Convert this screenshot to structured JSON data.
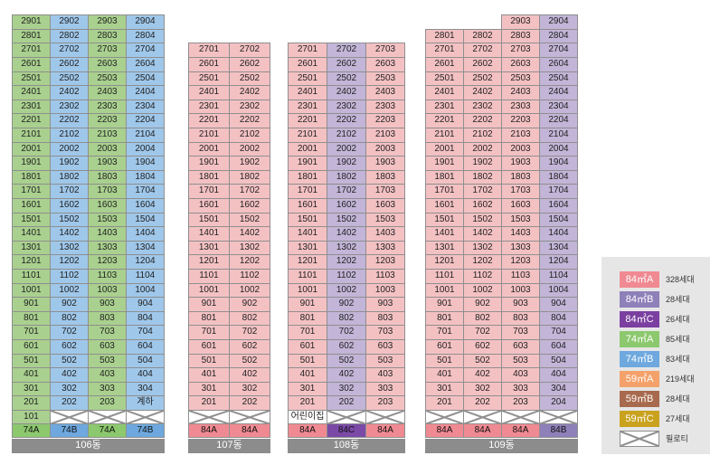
{
  "colors": {
    "84A": "#f4c1c3",
    "84B": "#c2b5d7",
    "84C": "#c2b5d7",
    "74A": "#a9d08e",
    "74B": "#9fc7ea",
    "59A": "#f4c1c3"
  },
  "buildings": [
    {
      "id": "106",
      "label": "106동",
      "columns": [
        {
          "type": "74A",
          "tag": "74A",
          "top_floor": 29,
          "suffix": "01",
          "low": [
            {
              "floor": 1,
              "text": "101"
            }
          ]
        },
        {
          "type": "74B",
          "tag": "74B",
          "top_floor": 29,
          "suffix": "02",
          "low": [
            {
              "floor": 1,
              "pil": true
            }
          ]
        },
        {
          "type": "74A",
          "tag": "74A",
          "top_floor": 29,
          "suffix": "03",
          "low": [
            {
              "floor": 1,
              "pil": true
            }
          ]
        },
        {
          "type": "74B",
          "tag": "74B",
          "top_floor": 29,
          "suffix": "04",
          "low": [
            {
              "floor": 2,
              "text": "계하"
            },
            {
              "floor": 1,
              "pil": true
            }
          ]
        }
      ]
    },
    {
      "id": "107",
      "label": "107동",
      "columns": [
        {
          "type": "84A",
          "tag": "84A",
          "top_floor": 27,
          "suffix": "01",
          "low": [
            {
              "floor": 1,
              "pil": true
            }
          ]
        },
        {
          "type": "84A",
          "tag": "84A",
          "top_floor": 27,
          "suffix": "02",
          "low": [
            {
              "floor": 1,
              "pil": true
            }
          ]
        }
      ]
    },
    {
      "id": "108",
      "label": "108동",
      "columns": [
        {
          "type": "84A",
          "tag": "84A",
          "top_floor": 27,
          "suffix": "01",
          "low": [
            {
              "floor": 1,
              "text": "어린이집"
            }
          ]
        },
        {
          "type": "84C",
          "tag": "84C",
          "top_floor": 27,
          "suffix": "02",
          "low": [
            {
              "floor": 1,
              "pil": true
            }
          ]
        },
        {
          "type": "84A",
          "tag": "84A",
          "top_floor": 27,
          "suffix": "03",
          "low": [
            {
              "floor": 1,
              "pil": true
            }
          ]
        }
      ]
    },
    {
      "id": "109",
      "label": "109동",
      "columns": [
        {
          "type": "84A",
          "tag": "84A",
          "top_floor": 28,
          "suffix": "01",
          "low": [
            {
              "floor": 1,
              "pil": true
            }
          ]
        },
        {
          "type": "84A",
          "tag": "84A",
          "top_floor": 28,
          "suffix": "02",
          "low": [
            {
              "floor": 1,
              "pil": true
            }
          ]
        },
        {
          "type": "84A",
          "tag": "84A",
          "top_floor": 29,
          "suffix": "03",
          "low": [
            {
              "floor": 1,
              "pil": true
            }
          ]
        },
        {
          "type": "84B",
          "tag": "84B",
          "top_floor": 29,
          "suffix": "04",
          "low": [
            {
              "floor": 1,
              "pil": true
            }
          ]
        }
      ]
    }
  ],
  "tag_colors": {
    "84A": "#f08a92",
    "84B": "#8e80b8",
    "84C": "#7a4aa6",
    "74A": "#8cc86e",
    "74B": "#6ea8de"
  },
  "legend": [
    {
      "label": "84㎡A",
      "count": "328세대",
      "color": "#f08a92"
    },
    {
      "label": "84㎡B",
      "count": "28세대",
      "color": "#8e80b8"
    },
    {
      "label": "84㎡C",
      "count": "26세대",
      "color": "#7a3fa0"
    },
    {
      "label": "74㎡A",
      "count": "85세대",
      "color": "#8cc86e"
    },
    {
      "label": "74㎡B",
      "count": "83세대",
      "color": "#6ea8de"
    },
    {
      "label": "59㎡A",
      "count": "219세대",
      "color": "#f4a16a"
    },
    {
      "label": "59㎡B",
      "count": "28세대",
      "color": "#a86a4e"
    },
    {
      "label": "59㎡C",
      "count": "27세대",
      "color": "#c9a21e"
    },
    {
      "label": "",
      "count": "필로티",
      "pilotis": true
    }
  ]
}
